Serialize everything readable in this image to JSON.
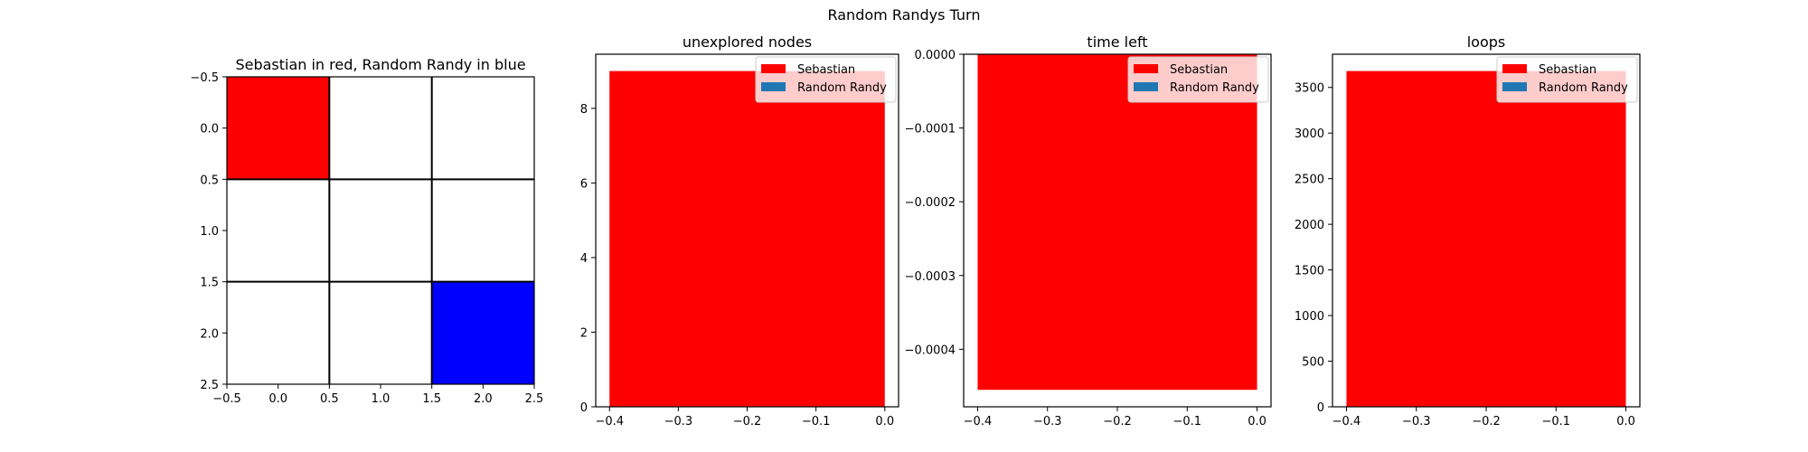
{
  "figure": {
    "title": "Random Randys Turn"
  },
  "chart_data": [
    {
      "type": "heatmap",
      "title": "Sebastian in red, Random Randy in blue",
      "grid": [
        [
          "#ff0000",
          "#ffffff",
          "#ffffff"
        ],
        [
          "#ffffff",
          "#ffffff",
          "#ffffff"
        ],
        [
          "#ffffff",
          "#ffffff",
          "#0000ff"
        ]
      ],
      "xlim": [
        -0.5,
        2.5
      ],
      "ylim": [
        2.5,
        -0.5
      ],
      "xticks": [
        "−0.5",
        "0.0",
        "0.5",
        "1.0",
        "1.5",
        "2.0",
        "2.5"
      ],
      "yticks": [
        "−0.5",
        "0.0",
        "0.5",
        "1.0",
        "1.5",
        "2.0",
        "2.5"
      ],
      "gridlines": true
    },
    {
      "type": "bar",
      "title": "unexplored nodes",
      "series": [
        {
          "name": "Sebastian",
          "color": "#ff0000",
          "x": -0.2,
          "width": 0.4,
          "value": 9
        },
        {
          "name": "Random Randy",
          "color": "#1f77b4",
          "x": -0.2,
          "width": 0.4,
          "value": 0
        }
      ],
      "xlim": [
        -0.42,
        0.02
      ],
      "ylim": [
        0,
        9.45
      ],
      "xticks": [
        -0.4,
        -0.3,
        -0.2,
        -0.1,
        0.0
      ],
      "xtick_labels": [
        "−0.4",
        "−0.3",
        "−0.2",
        "−0.1",
        "0.0"
      ],
      "yticks": [
        0,
        2,
        4,
        6,
        8
      ],
      "ytick_labels": [
        "0",
        "2",
        "4",
        "6",
        "8"
      ],
      "legend": "upper-right"
    },
    {
      "type": "bar",
      "title": "time left",
      "series": [
        {
          "name": "Sebastian",
          "color": "#ff0000",
          "x": -0.2,
          "width": 0.4,
          "value": -0.000455
        },
        {
          "name": "Random Randy",
          "color": "#1f77b4",
          "x": -0.2,
          "width": 0.4,
          "value": 0
        }
      ],
      "xlim": [
        -0.42,
        0.02
      ],
      "ylim": [
        -0.000478,
        0
      ],
      "xticks": [
        -0.4,
        -0.3,
        -0.2,
        -0.1,
        0.0
      ],
      "xtick_labels": [
        "−0.4",
        "−0.3",
        "−0.2",
        "−0.1",
        "0.0"
      ],
      "yticks": [
        0,
        -0.0001,
        -0.0002,
        -0.0003,
        -0.0004
      ],
      "ytick_labels": [
        "0.0000",
        "−0.0001",
        "−0.0002",
        "−0.0003",
        "−0.0004"
      ],
      "legend": "upper-right"
    },
    {
      "type": "bar",
      "title": "loops",
      "series": [
        {
          "name": "Sebastian",
          "color": "#ff0000",
          "x": -0.2,
          "width": 0.4,
          "value": 3680
        },
        {
          "name": "Random Randy",
          "color": "#1f77b4",
          "x": -0.2,
          "width": 0.4,
          "value": 0
        }
      ],
      "xlim": [
        -0.42,
        0.02
      ],
      "ylim": [
        0,
        3864
      ],
      "xticks": [
        -0.4,
        -0.3,
        -0.2,
        -0.1,
        0.0
      ],
      "xtick_labels": [
        "−0.4",
        "−0.3",
        "−0.2",
        "−0.1",
        "0.0"
      ],
      "yticks": [
        0,
        500,
        1000,
        1500,
        2000,
        2500,
        3000,
        3500
      ],
      "ytick_labels": [
        "0",
        "500",
        "1000",
        "1500",
        "2000",
        "2500",
        "3000",
        "3500"
      ],
      "legend": "upper-right"
    }
  ]
}
